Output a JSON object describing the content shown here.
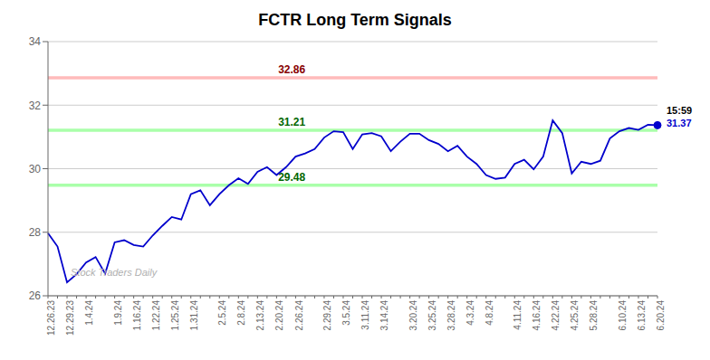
{
  "chart_data": {
    "type": "line",
    "title": "FCTR Long Term Signals",
    "categories": [
      "12.26.23",
      null,
      "12.29.23",
      null,
      "1.4.24",
      null,
      null,
      "1.9.24",
      null,
      "1.16.24",
      null,
      "1.22.24",
      null,
      "1.25.24",
      null,
      "1.31.24",
      null,
      null,
      "2.5.24",
      null,
      "2.8.24",
      null,
      "2.13.24",
      null,
      "2.20.24",
      null,
      "2.26.24",
      null,
      null,
      "2.29.24",
      null,
      "3.5.24",
      null,
      "3.11.24",
      null,
      "3.14.24",
      null,
      null,
      "3.20.24",
      null,
      "3.25.24",
      null,
      "3.28.24",
      null,
      "4.3.24",
      null,
      "4.8.24",
      null,
      null,
      "4.11.24",
      null,
      "4.16.24",
      null,
      "4.22.24",
      null,
      "4.25.24",
      null,
      "5.28.24",
      null,
      null,
      "6.10.24",
      null,
      "6.13.24",
      null,
      "6.20.24"
    ],
    "values": [
      27.97,
      27.55,
      26.42,
      26.68,
      27.05,
      27.22,
      26.7,
      27.68,
      27.75,
      27.6,
      27.55,
      27.9,
      28.2,
      28.48,
      28.4,
      29.2,
      29.32,
      28.85,
      29.2,
      29.48,
      29.7,
      29.52,
      29.9,
      30.05,
      29.8,
      30.05,
      30.38,
      30.48,
      30.62,
      30.98,
      31.18,
      31.15,
      30.62,
      31.08,
      31.12,
      31.02,
      30.55,
      30.85,
      31.1,
      31.1,
      30.9,
      30.78,
      30.55,
      30.72,
      30.38,
      30.15,
      29.8,
      29.68,
      29.72,
      30.15,
      30.28,
      29.98,
      30.38,
      31.52,
      31.12,
      29.85,
      30.22,
      30.15,
      30.25,
      30.95,
      31.18,
      31.28,
      31.22,
      31.38,
      31.37
    ],
    "color": "#0000cc",
    "ylim": [
      26,
      34
    ],
    "yticks": [
      26,
      28,
      30,
      32,
      34
    ],
    "grid": true,
    "reference_lines": [
      {
        "value": 32.86,
        "label": "32.86",
        "color": "#ffbbbb",
        "label_color": "#880000"
      },
      {
        "value": 31.21,
        "label": "31.21",
        "color": "#aaffaa",
        "label_color": "#006600"
      },
      {
        "value": 29.48,
        "label": "29.48",
        "color": "#aaffaa",
        "label_color": "#006600"
      }
    ],
    "last_point": {
      "label": "15:59",
      "value": 31.37,
      "label_color": "#000000",
      "value_color": "#0000cc"
    },
    "watermark": "Stock Traders Daily",
    "watermark_color": "#b0b0b0"
  }
}
